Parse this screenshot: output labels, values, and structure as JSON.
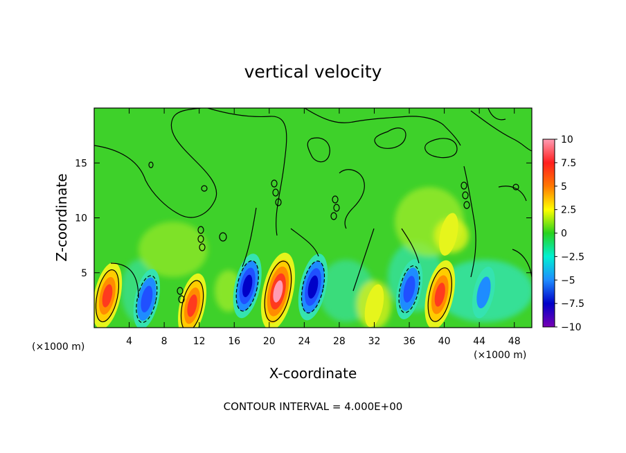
{
  "chart_data": {
    "type": "heatmap",
    "title": "vertical velocity",
    "xlabel": "X-coordinate",
    "ylabel": "Z-coordinate",
    "x_unit_left": "(×1000 m)",
    "x_unit_right": "(×1000 m)",
    "xlim": [
      0,
      50
    ],
    "ylim": [
      0,
      20
    ],
    "x_ticks": [
      4,
      8,
      12,
      16,
      20,
      24,
      28,
      32,
      36,
      40,
      44,
      48
    ],
    "y_ticks": [
      5,
      10,
      15
    ],
    "colorbar": {
      "ticks": [
        "10",
        "7.5",
        "5",
        "2.5",
        "0",
        "−2.5",
        "−5",
        "−7.5",
        "−10"
      ],
      "range": [
        -10,
        10
      ],
      "colors": [
        "#ff9cb4",
        "#ff1e1e",
        "#ff7800",
        "#ffff00",
        "#28d21e",
        "#00f0d2",
        "#1e8cff",
        "#0000c8",
        "#7800b4"
      ]
    },
    "features": [
      {
        "x": 1.5,
        "z": 2.9,
        "value": 7.5
      },
      {
        "x": 6.0,
        "z": 2.6,
        "value": -6
      },
      {
        "x": 11.2,
        "z": 2.0,
        "value": 7
      },
      {
        "x": 17.5,
        "z": 3.8,
        "value": -7
      },
      {
        "x": 21.0,
        "z": 3.3,
        "value": 10
      },
      {
        "x": 25.0,
        "z": 3.7,
        "value": -7.5
      },
      {
        "x": 32.0,
        "z": 2.0,
        "value": 2
      },
      {
        "x": 36.0,
        "z": 3.5,
        "value": -6
      },
      {
        "x": 39.5,
        "z": 3.0,
        "value": 8
      },
      {
        "x": 44.5,
        "z": 3.2,
        "value": -4
      },
      {
        "x": 40.5,
        "z": 8.5,
        "value": 2
      }
    ],
    "contour_interval_text": "CONTOUR INTERVAL = 4.000E+00"
  }
}
